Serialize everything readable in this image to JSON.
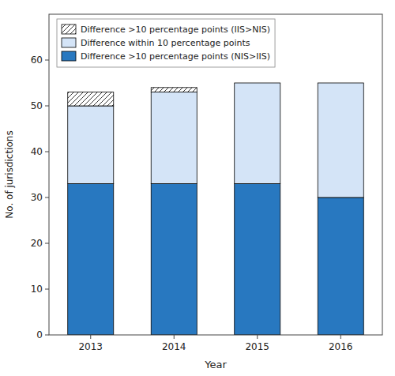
{
  "chart_data": {
    "type": "bar",
    "stacked": true,
    "categories": [
      "2013",
      "2014",
      "2015",
      "2016"
    ],
    "series": [
      {
        "name": "Difference >10 percentage points (NIS>IIS)",
        "color": "#2878c0",
        "values": [
          33,
          33,
          33,
          30
        ]
      },
      {
        "name": "Difference within 10 percentage points",
        "color": "#d4e4f7",
        "values": [
          17,
          20,
          22,
          25
        ]
      },
      {
        "name": "Difference >10 percentage points (IIS>NIS)",
        "color": "white",
        "values": [
          3,
          1,
          0,
          0
        ]
      }
    ],
    "x_label": "Year",
    "y_label": "No. of jurisdictions",
    "ylim": [
      0,
      70
    ],
    "yticks": [
      0,
      10,
      20,
      30,
      40,
      50,
      60
    ],
    "legend": "upper left",
    "grid": false
  }
}
